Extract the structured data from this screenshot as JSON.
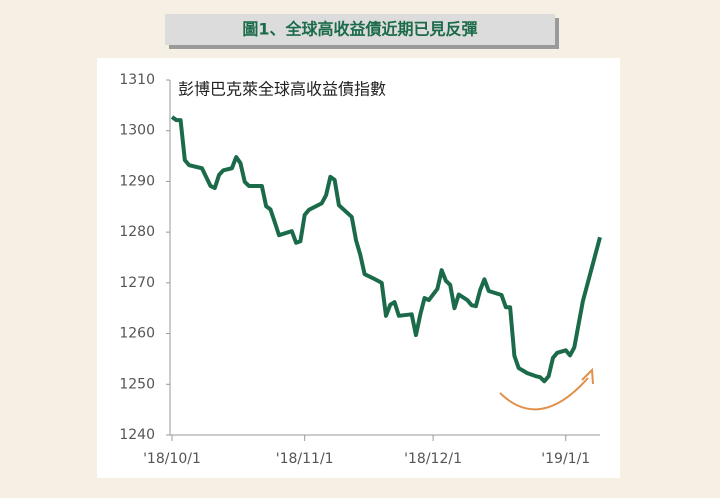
{
  "chart_data": {
    "type": "line",
    "title": "圖1、全球高收益債近期已見反彈",
    "subtitle": "彭博巴克萊全球高收益債指數",
    "x": [
      0,
      1,
      2,
      3,
      4,
      7,
      9,
      10,
      11,
      12,
      14,
      15,
      16,
      17,
      18,
      21,
      22,
      23,
      24,
      25,
      28,
      29,
      30,
      31,
      32,
      35,
      36,
      37,
      38,
      39,
      42,
      43,
      44,
      45,
      47,
      49,
      50,
      51,
      52,
      53,
      56,
      57,
      58,
      59,
      60,
      62,
      63,
      64,
      65,
      66,
      67,
      69,
      70,
      71,
      72,
      73,
      74,
      77,
      78,
      79,
      80,
      81,
      83,
      85,
      86,
      87,
      88,
      89,
      90,
      92,
      93,
      94,
      96,
      100
    ],
    "series": [
      {
        "name": "彭博巴克萊全球高收益債指數",
        "color": "#1b6b4a",
        "values": [
          1302.7,
          1302.1,
          1302.1,
          1294.2,
          1293.2,
          1292.6,
          1289.1,
          1288.7,
          1291.3,
          1292.2,
          1292.6,
          1294.8,
          1293.6,
          1289.9,
          1289.1,
          1289.1,
          1285.1,
          1284.5,
          1282,
          1279.4,
          1280.2,
          1277.9,
          1278.2,
          1283.4,
          1284.4,
          1285.7,
          1287.3,
          1290.9,
          1290.3,
          1285.3,
          1283,
          1278.4,
          1275.5,
          1271.7,
          1270.9,
          1270,
          1263.5,
          1265.7,
          1266.2,
          1263.5,
          1263.8,
          1259.7,
          1263.7,
          1267,
          1266.6,
          1268.8,
          1272.5,
          1270.4,
          1269.6,
          1265,
          1267.7,
          1266.6,
          1265.6,
          1265.4,
          1268.6,
          1270.7,
          1268.4,
          1267.6,
          1265.2,
          1265.2,
          1255.6,
          1253.2,
          1252.2,
          1251.6,
          1251.4,
          1250.6,
          1251.6,
          1255.2,
          1256.2,
          1256.7,
          1255.7,
          1257.3,
          1266.4,
          1279
        ]
      }
    ],
    "xlim": [
      0,
      100
    ],
    "xticks": [
      {
        "value": 0,
        "label": "'18/10/1"
      },
      {
        "value": 31,
        "label": "'18/11/1"
      },
      {
        "value": 61,
        "label": "'18/12/1"
      },
      {
        "value": 92,
        "label": "'19/1/1"
      }
    ],
    "ylim": [
      1240,
      1310
    ],
    "yticks": [
      1240,
      1250,
      1260,
      1270,
      1280,
      1290,
      1300,
      1310
    ]
  }
}
